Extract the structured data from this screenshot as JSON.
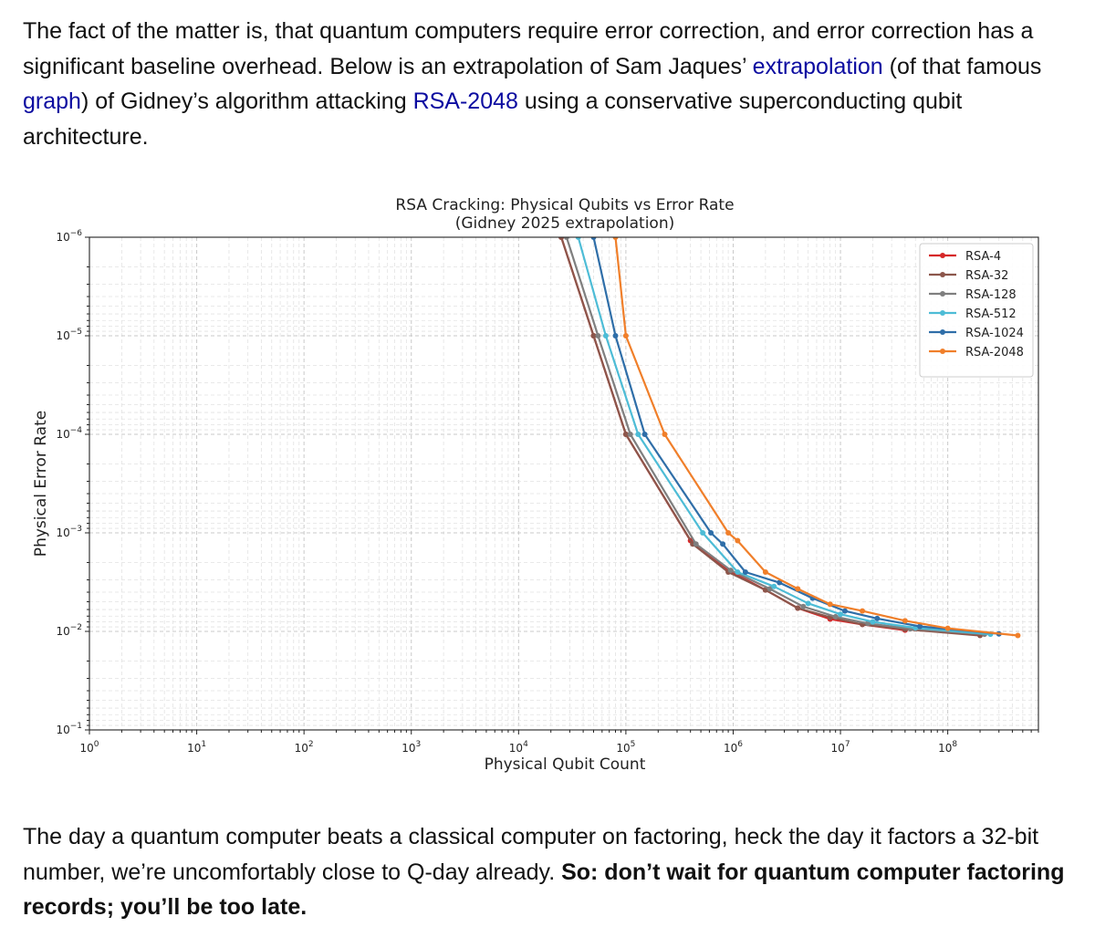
{
  "intro": {
    "part1": "The fact of the matter is, that quantum computers require error correction, and error correction has a significant baseline overhead. Below is an extrapolation of Sam Jaques’ ",
    "link1": "extrapolation",
    "part2": " (of that famous ",
    "link2": "graph",
    "part3": ") of Gidney’s algorithm attacking ",
    "link3": "RSA-2048",
    "part4": " using a conservative superconducting qubit architecture."
  },
  "outro": {
    "plain": "The day a quantum computer beats a classical computer on factoring, heck the day it factors a 32-bit number, we’re uncomfortably close to Q-day already. ",
    "bold": "So: don’t wait for quantum computer factoring records; you’ll be too late."
  },
  "chart_data": {
    "type": "line",
    "title": "RSA Cracking: Physical Qubits vs Error Rate",
    "subtitle": "(Gidney 2025 extrapolation)",
    "xlabel": "Physical Qubit Count",
    "ylabel": "Physical Error Rate",
    "x_scale": "log",
    "y_scale": "log",
    "y_inverted": true,
    "xlim": [
      1,
      700000000
    ],
    "ylim": [
      1e-06,
      0.1
    ],
    "x_ticks": [
      {
        "value": 1,
        "base": "10",
        "exp": "0"
      },
      {
        "value": 10,
        "base": "10",
        "exp": "1"
      },
      {
        "value": 100,
        "base": "10",
        "exp": "2"
      },
      {
        "value": 1000,
        "base": "10",
        "exp": "3"
      },
      {
        "value": 10000,
        "base": "10",
        "exp": "4"
      },
      {
        "value": 100000,
        "base": "10",
        "exp": "5"
      },
      {
        "value": 1000000,
        "base": "10",
        "exp": "6"
      },
      {
        "value": 10000000,
        "base": "10",
        "exp": "7"
      },
      {
        "value": 100000000,
        "base": "10",
        "exp": "8"
      }
    ],
    "y_ticks": [
      {
        "value": 1e-06,
        "base": "10",
        "exp": "−6"
      },
      {
        "value": 1e-05,
        "base": "10",
        "exp": "−5"
      },
      {
        "value": 0.0001,
        "base": "10",
        "exp": "−4"
      },
      {
        "value": 0.001,
        "base": "10",
        "exp": "−3"
      },
      {
        "value": 0.01,
        "base": "10",
        "exp": "−2"
      },
      {
        "value": 0.1,
        "base": "10",
        "exp": "−1"
      }
    ],
    "grid": true,
    "legend_position": "top-right",
    "series": [
      {
        "name": "RSA-4",
        "color": "#d62728",
        "points": [
          [
            25000,
            1e-06
          ],
          [
            50000,
            1e-05
          ],
          [
            100000,
            0.0001
          ],
          [
            400000,
            0.0012
          ],
          [
            900000,
            0.0024
          ],
          [
            2000000,
            0.0038
          ],
          [
            4000000,
            0.0058
          ],
          [
            8000000,
            0.0075
          ],
          [
            16000000,
            0.0085
          ],
          [
            40000000,
            0.0097
          ]
        ]
      },
      {
        "name": "RSA-32",
        "color": "#8c564b",
        "points": [
          [
            25000,
            1e-06
          ],
          [
            50000,
            1e-05
          ],
          [
            100000,
            0.0001
          ],
          [
            420000,
            0.0013
          ],
          [
            900000,
            0.0025
          ],
          [
            2000000,
            0.0038
          ],
          [
            4000000,
            0.0058
          ],
          [
            8000000,
            0.0072
          ],
          [
            16000000,
            0.0085
          ],
          [
            40000000,
            0.0095
          ],
          [
            200000000,
            0.011
          ]
        ]
      },
      {
        "name": "RSA-128",
        "color": "#7f7f7f",
        "points": [
          [
            28000,
            1e-06
          ],
          [
            55000,
            1e-05
          ],
          [
            110000,
            0.0001
          ],
          [
            450000,
            0.0013
          ],
          [
            950000,
            0.0024
          ],
          [
            2200000,
            0.0037
          ],
          [
            4500000,
            0.0056
          ],
          [
            9000000,
            0.0071
          ],
          [
            18000000,
            0.0083
          ],
          [
            45000000,
            0.0094
          ],
          [
            220000000,
            0.0107
          ]
        ]
      },
      {
        "name": "RSA-512",
        "color": "#4dbcd6",
        "points": [
          [
            36000,
            1e-06
          ],
          [
            65000,
            1e-05
          ],
          [
            130000,
            0.0001
          ],
          [
            520000,
            0.001
          ],
          [
            1100000,
            0.0025
          ],
          [
            2400000,
            0.0035
          ],
          [
            5000000,
            0.0052
          ],
          [
            10000000,
            0.0067
          ],
          [
            20000000,
            0.008
          ],
          [
            50000000,
            0.0092
          ],
          [
            250000000,
            0.0107
          ]
        ]
      },
      {
        "name": "RSA-1024",
        "color": "#2f6ea8",
        "points": [
          [
            50000,
            1e-06
          ],
          [
            80000,
            1e-05
          ],
          [
            150000,
            0.0001
          ],
          [
            620000,
            0.001
          ],
          [
            800000,
            0.0013
          ],
          [
            1300000,
            0.0025
          ],
          [
            2700000,
            0.0032
          ],
          [
            5500000,
            0.0046
          ],
          [
            11000000,
            0.0062
          ],
          [
            22000000,
            0.0074
          ],
          [
            55000000,
            0.0089
          ],
          [
            300000000,
            0.0106
          ]
        ]
      },
      {
        "name": "RSA-2048",
        "color": "#f07f2a",
        "points": [
          [
            80000,
            1e-06
          ],
          [
            100000,
            1e-05
          ],
          [
            230000,
            0.0001
          ],
          [
            900000,
            0.001
          ],
          [
            1100000,
            0.0012
          ],
          [
            2000000,
            0.0025
          ],
          [
            4000000,
            0.0037
          ],
          [
            8000000,
            0.0053
          ],
          [
            16000000,
            0.0062
          ],
          [
            40000000,
            0.0078
          ],
          [
            100000000,
            0.0093
          ],
          [
            450000000,
            0.011
          ]
        ]
      }
    ]
  }
}
